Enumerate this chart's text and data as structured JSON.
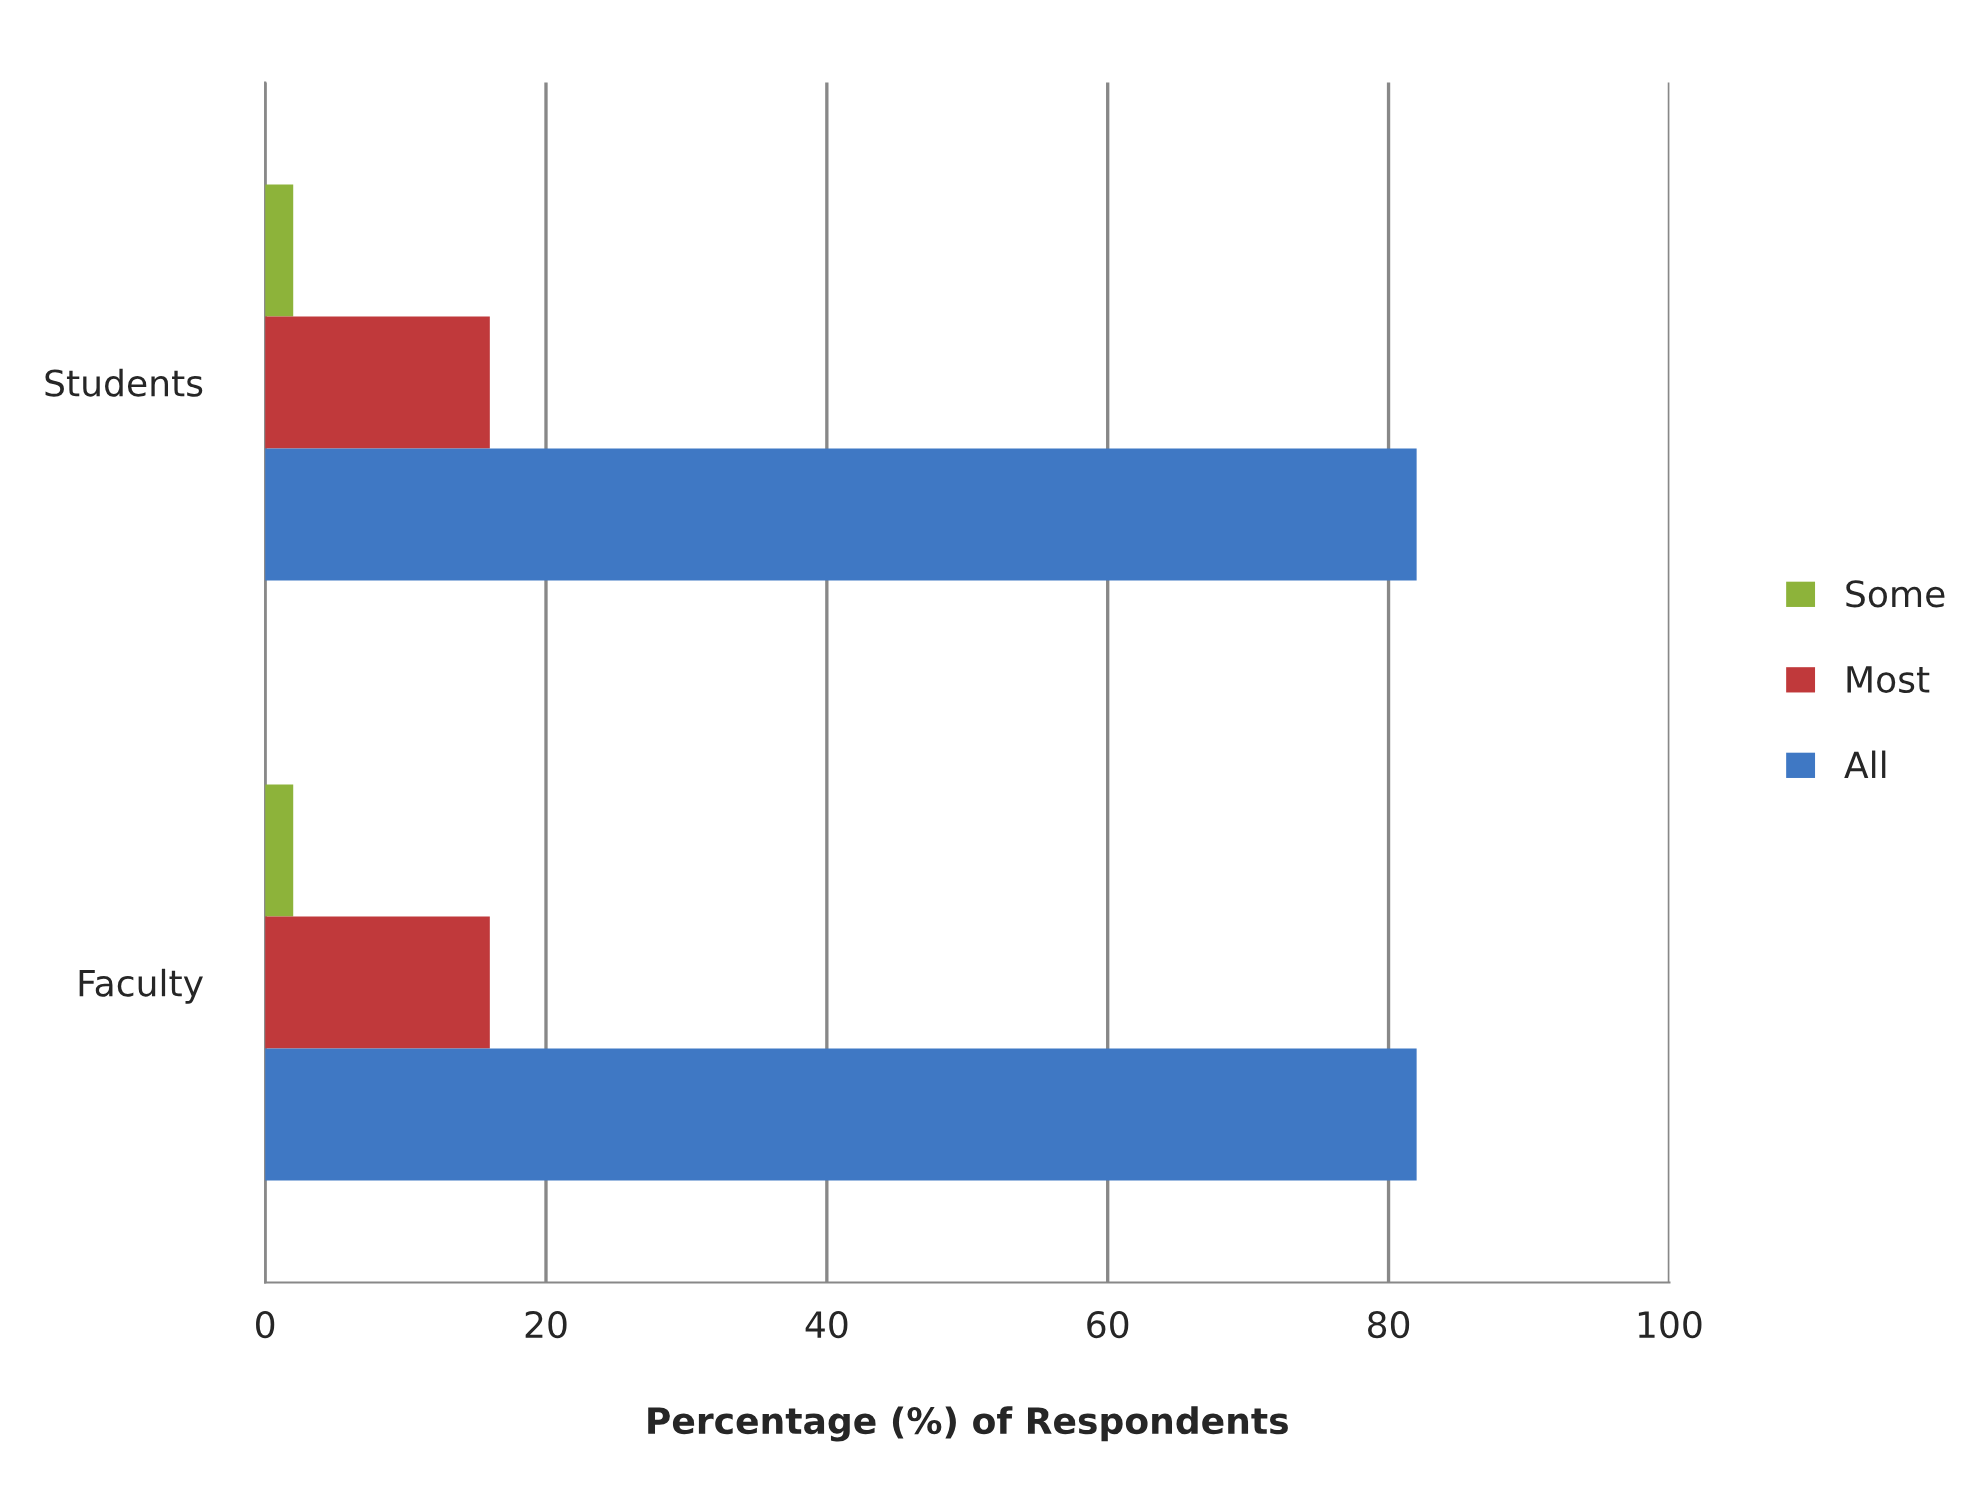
{
  "chart_data": {
    "type": "bar",
    "orientation": "horizontal",
    "categories": [
      "Students",
      "Faculty"
    ],
    "series": [
      {
        "name": "Some",
        "color": "#8db33a",
        "values": [
          2,
          2
        ]
      },
      {
        "name": "Most",
        "color": "#c0393b",
        "values": [
          16,
          16
        ]
      },
      {
        "name": "All",
        "color": "#3f78c4",
        "values": [
          82,
          82
        ]
      }
    ],
    "xlabel": "Percentage (%) of Respondents",
    "xlim": [
      0,
      100
    ],
    "xticks": [
      0,
      20,
      40,
      60,
      80,
      100
    ],
    "grid": "x",
    "legend": "right"
  }
}
